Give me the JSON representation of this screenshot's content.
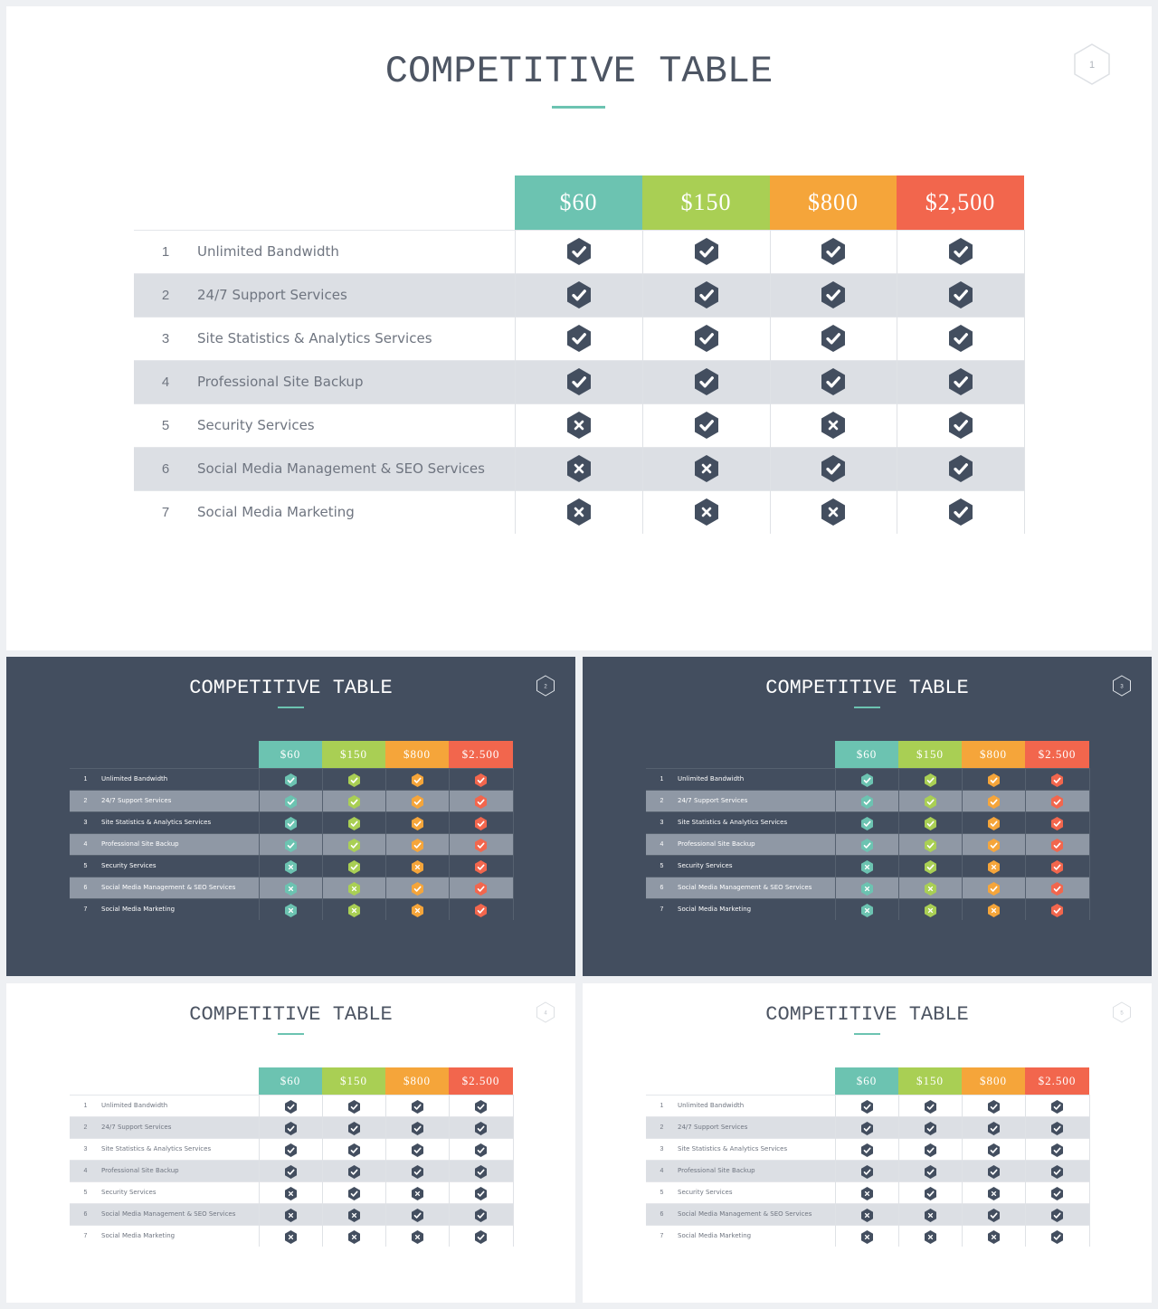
{
  "slides": [
    {
      "id": "slide-1",
      "title": "COMPETITIVE TABLE",
      "page_number": "1",
      "theme": "light",
      "marks": "mono"
    },
    {
      "id": "slide-2",
      "title": "COMPETITIVE TABLE",
      "page_number": "2",
      "theme": "dark",
      "marks": "color"
    },
    {
      "id": "slide-3",
      "title": "COMPETITIVE TABLE",
      "page_number": "3",
      "theme": "dark",
      "marks": "color"
    },
    {
      "id": "slide-4",
      "title": "COMPETITIVE TABLE",
      "page_number": "4",
      "theme": "light",
      "marks": "mono"
    },
    {
      "id": "slide-5",
      "title": "COMPETITIVE TABLE",
      "page_number": "5",
      "theme": "light",
      "marks": "mono"
    }
  ],
  "plans": [
    {
      "price": "$60",
      "color": "#6cc3b1"
    },
    {
      "price": "$150",
      "color": "#a9cf54"
    },
    {
      "price": "$800",
      "color": "#f5a53a"
    },
    {
      "price": "$2,500",
      "color": "#f2664d"
    }
  ],
  "plans_thumbnail": [
    "$60",
    "$150",
    "$800",
    "$2.500"
  ],
  "features": [
    {
      "num": "1",
      "label": "Unlimited Bandwidth",
      "marks": [
        "check",
        "check",
        "check",
        "check"
      ]
    },
    {
      "num": "2",
      "label": "24/7 Support Services",
      "marks": [
        "check",
        "check",
        "check",
        "check"
      ]
    },
    {
      "num": "3",
      "label": "Site Statistics & Analytics Services",
      "marks": [
        "check",
        "check",
        "check",
        "check"
      ]
    },
    {
      "num": "4",
      "label": "Professional Site Backup",
      "marks": [
        "check",
        "check",
        "check",
        "check"
      ]
    },
    {
      "num": "5",
      "label": "Security Services",
      "marks": [
        "cross",
        "check",
        "cross",
        "check"
      ]
    },
    {
      "num": "6",
      "label": "Social Media Management & SEO Services",
      "marks": [
        "cross",
        "cross",
        "check",
        "check"
      ]
    },
    {
      "num": "7",
      "label": "Social Media Marketing",
      "marks": [
        "cross",
        "cross",
        "cross",
        "check"
      ]
    }
  ],
  "colors": {
    "mono_mark": "#434e5f",
    "accent_rule": "#6cc3b1"
  }
}
